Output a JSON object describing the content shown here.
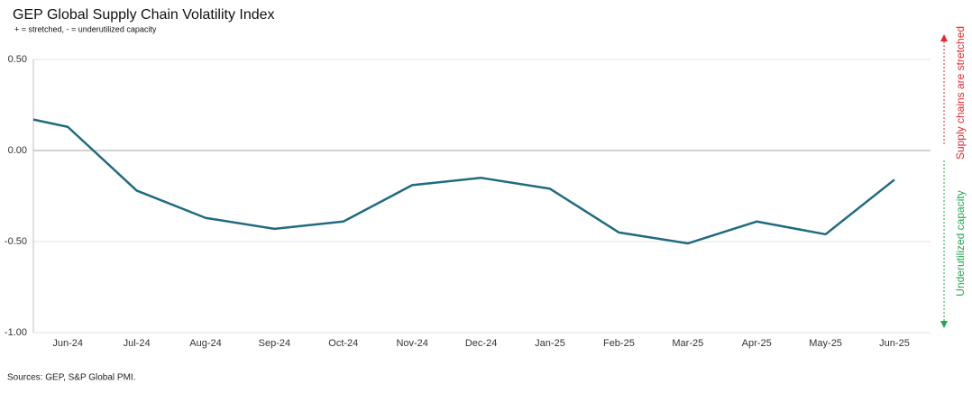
{
  "chart_data": {
    "type": "line",
    "title": "GEP Global Supply Chain Volatility Index",
    "subtitle": "+ = stretched, - = underutilized capacity",
    "source": "Sources: GEP, S&P Global PMI.",
    "categories": [
      null,
      "Jun-24",
      "Jul-24",
      "Aug-24",
      "Sep-24",
      "Oct-24",
      "Nov-24",
      "Dec-24",
      "Jan-25",
      "Feb-25",
      "Mar-25",
      "Apr-25",
      "May-25",
      "Jun-25"
    ],
    "series": [
      {
        "name": "GEP Global Supply Chain Volatility Index",
        "color": "#1f6b80",
        "values": [
          0.17,
          0.13,
          -0.22,
          -0.37,
          -0.43,
          -0.39,
          -0.19,
          -0.15,
          -0.21,
          -0.45,
          -0.51,
          -0.39,
          -0.46,
          -0.16
        ]
      }
    ],
    "ylim": [
      -1,
      0.5
    ],
    "yticks": [
      {
        "value": 0.5,
        "label": "0.50"
      },
      {
        "value": 0,
        "label": "0.00"
      },
      {
        "value": -0.5,
        "label": "-0.50"
      },
      {
        "value": -1,
        "label": "-1.00"
      }
    ],
    "grid": true,
    "annotations": [
      {
        "text": "Supply chains are stretched",
        "color": "#e8262b"
      },
      {
        "text": "Underutilized capacity",
        "color": "#1fa84f"
      }
    ]
  }
}
